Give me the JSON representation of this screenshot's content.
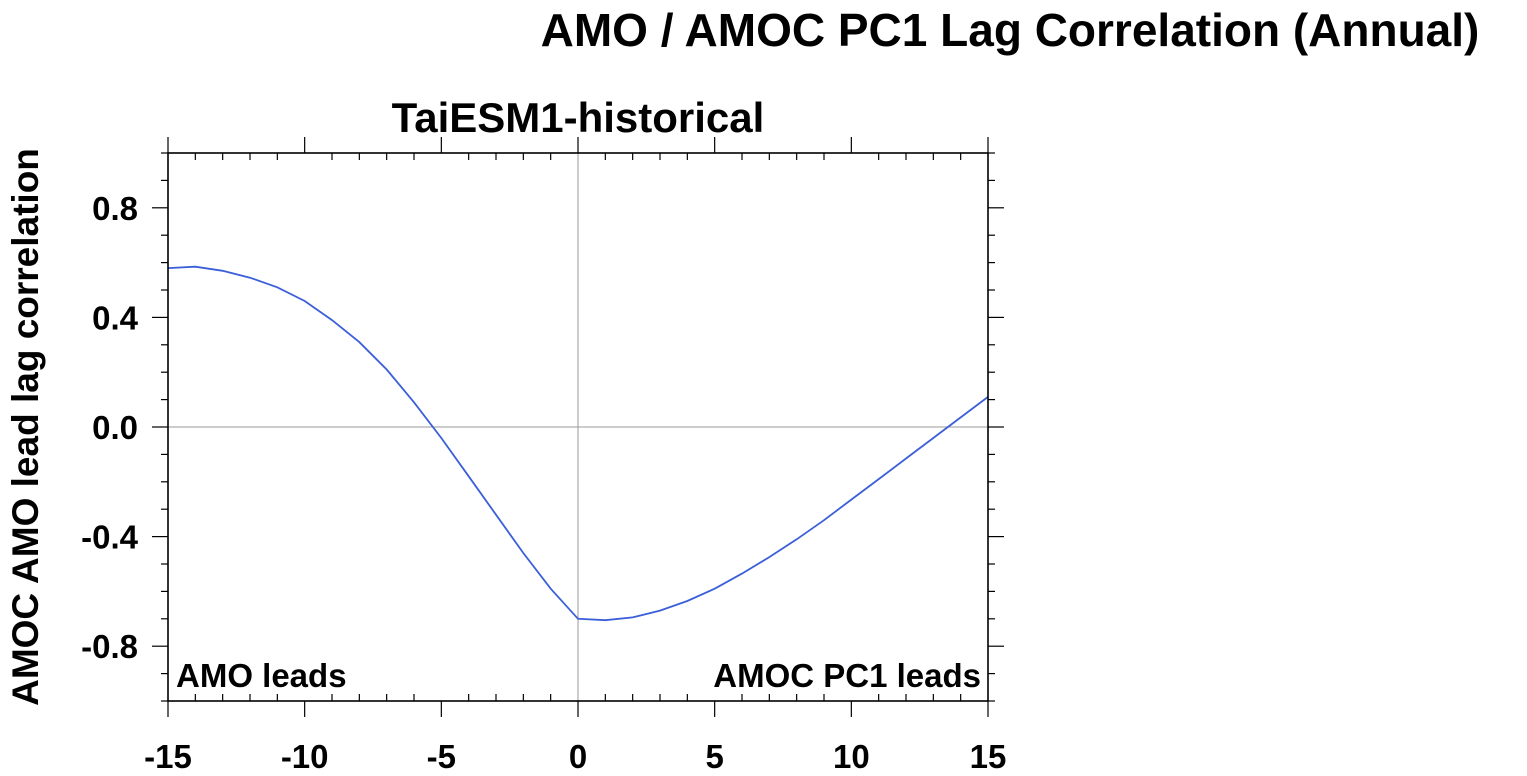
{
  "figure_title": "AMO / AMOC PC1 Lag Correlation (Annual)",
  "colors": {
    "line": "#3a5fd9",
    "axis": "#000000",
    "refline": "#9a9a9a"
  },
  "chart_data": {
    "type": "line",
    "title": "TaiESM1-historical",
    "xlabel": "",
    "ylabel": "AMOC AMO lead lag correlation",
    "xlim": [
      -15,
      15
    ],
    "ylim": [
      -1.0,
      1.0
    ],
    "xticks": [
      -15,
      -10,
      -5,
      0,
      5,
      10,
      15
    ],
    "xtick_labels": [
      "-15",
      "-10",
      "-5",
      "0",
      "5",
      "10",
      "15"
    ],
    "yticks": [
      0.8,
      0.4,
      0.0,
      -0.4,
      -0.8
    ],
    "ytick_labels": [
      "0.8",
      "0.4",
      "0.0",
      "-0.4",
      "-0.8"
    ],
    "grid": false,
    "annotations": {
      "left": "AMO leads",
      "right": "AMOC PC1 leads"
    },
    "series": [
      {
        "x": [
          -15,
          -14,
          -13,
          -12,
          -11,
          -10,
          -9,
          -8,
          -7,
          -6,
          -5,
          -4,
          -3,
          -2,
          -1,
          0,
          1,
          2,
          3,
          4,
          5,
          6,
          7,
          8,
          9,
          10,
          11,
          12,
          13,
          14,
          15
        ],
        "values": [
          0.58,
          0.585,
          0.57,
          0.545,
          0.51,
          0.46,
          0.39,
          0.31,
          0.21,
          0.09,
          -0.04,
          -0.18,
          -0.32,
          -0.46,
          -0.59,
          -0.7,
          -0.705,
          -0.695,
          -0.67,
          -0.635,
          -0.59,
          -0.535,
          -0.475,
          -0.41,
          -0.34,
          -0.265,
          -0.19,
          -0.115,
          -0.04,
          0.035,
          0.11
        ]
      }
    ]
  }
}
